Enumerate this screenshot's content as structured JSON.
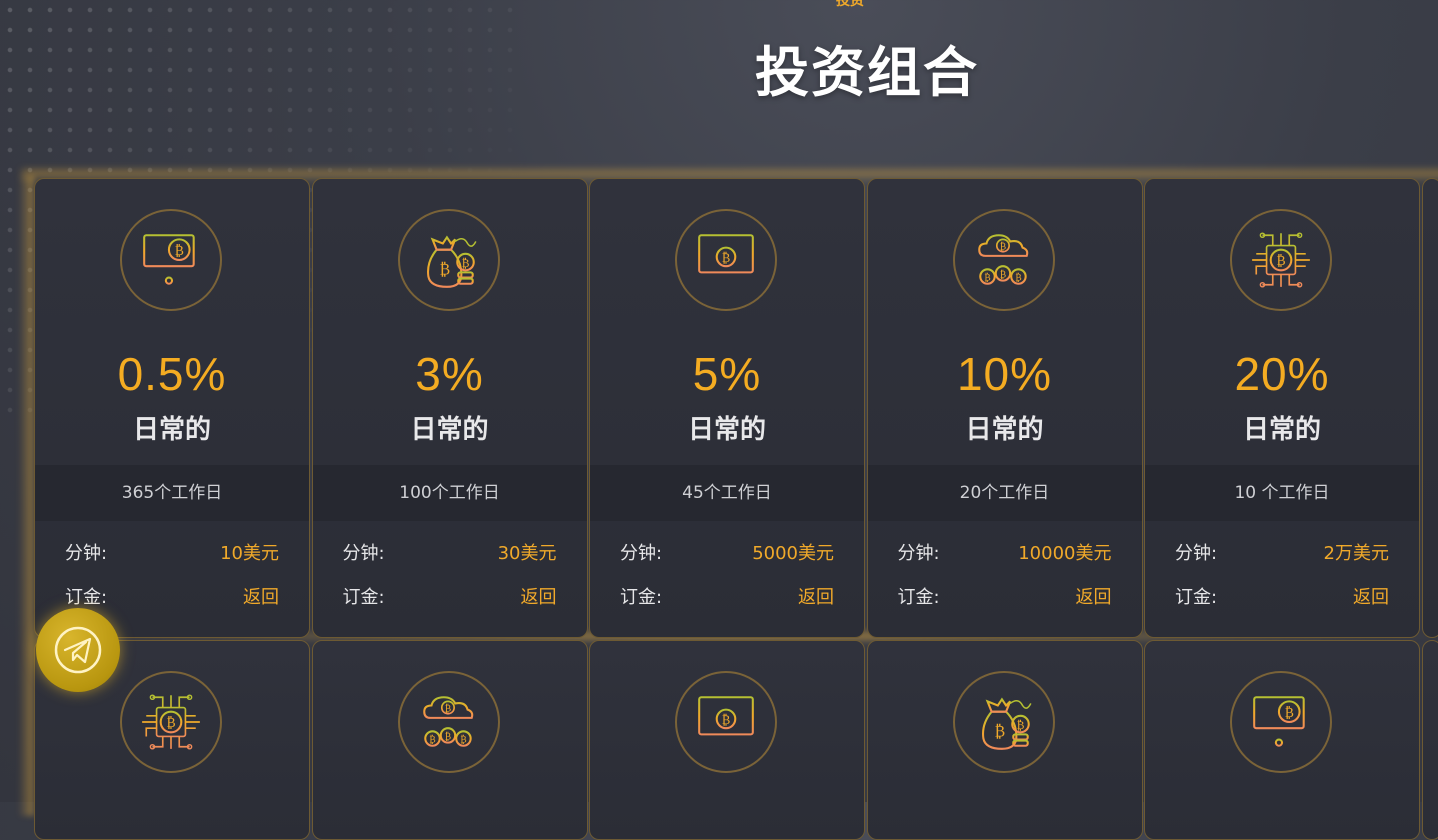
{
  "header": {
    "eyebrow": "投资",
    "title": "投资组合"
  },
  "labels": {
    "daily": "日常的",
    "min_key": "分钟:",
    "deposit_key": "订金:"
  },
  "plans": [
    {
      "rate": "0.5%",
      "days": "365个工作日",
      "min": "10美元",
      "deposit": "返回",
      "icon": "bitcoin-server-icon"
    },
    {
      "rate": "3%",
      "days": "100个工作日",
      "min": "30美元",
      "deposit": "返回",
      "icon": "bitcoin-money-bag-icon"
    },
    {
      "rate": "5%",
      "days": "45个工作日",
      "min": "5000美元",
      "deposit": "返回",
      "icon": "bitcoin-monitor-icon"
    },
    {
      "rate": "10%",
      "days": "20个工作日",
      "min": "10000美元",
      "deposit": "返回",
      "icon": "bitcoin-cloud-icon"
    },
    {
      "rate": "20%",
      "days": "10 个工作日",
      "min": "2万美元",
      "deposit": "返回",
      "icon": "bitcoin-chip-icon"
    }
  ],
  "plans_row2": [
    {
      "icon": "bitcoin-chip-icon"
    },
    {
      "icon": "bitcoin-cloud-icon"
    },
    {
      "icon": "bitcoin-monitor-icon"
    },
    {
      "icon": "bitcoin-money-bag-icon"
    },
    {
      "icon": "bitcoin-server-icon"
    }
  ],
  "floating": {
    "icon": "telegram-icon"
  },
  "colors": {
    "accent": "#f4ac22",
    "card_border": "#6d5a33",
    "background": "#3b3e48"
  }
}
